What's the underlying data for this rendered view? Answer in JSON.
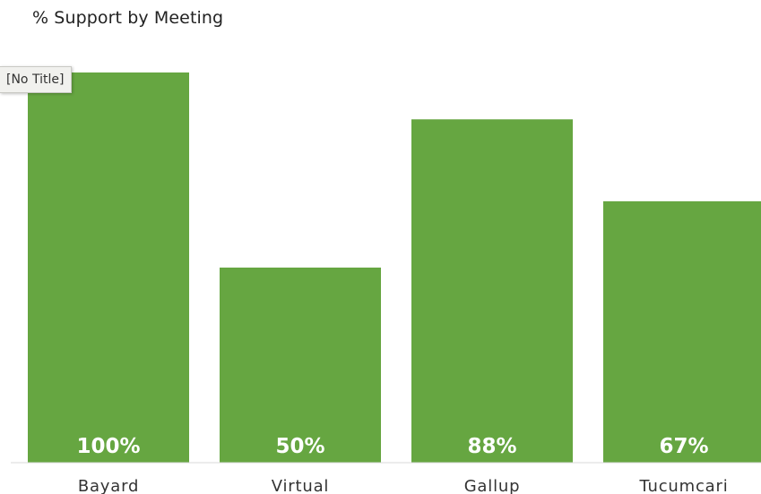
{
  "chart_data": {
    "type": "bar",
    "title": "% Support by Meeting",
    "categories": [
      "Bayard",
      "Virtual",
      "Gallup",
      "Tucumcari"
    ],
    "values": [
      100,
      50,
      88,
      67
    ],
    "value_labels": [
      "100%",
      "50%",
      "88%",
      "67%"
    ],
    "ylim": [
      0,
      100
    ],
    "grid": false,
    "legend": "none",
    "bar_color": "#66a641",
    "xlabel": "",
    "ylabel": ""
  },
  "tooltip": {
    "text": "[No Title]"
  }
}
